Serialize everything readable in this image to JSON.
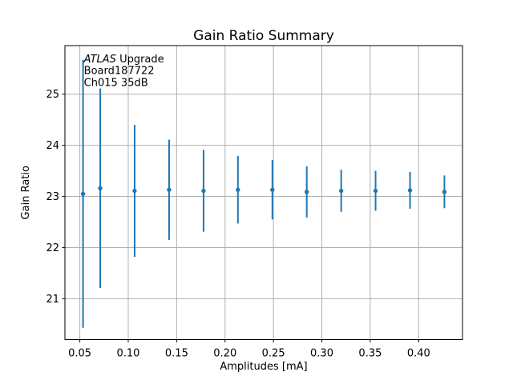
{
  "figure": {
    "background": "#ffffff",
    "spine_color": "#000000",
    "text_color": "#000000"
  },
  "chart_data": {
    "type": "scatter",
    "title": "Gain Ratio Summary",
    "xlabel": "Amplitudes [mA]",
    "ylabel": "Gain Ratio",
    "grid": true,
    "grid_color": "#b0b0b0",
    "legend": "none",
    "x": [
      0.0533,
      0.0711,
      0.1066,
      0.1422,
      0.1778,
      0.2133,
      0.2489,
      0.2844,
      0.32,
      0.3555,
      0.3911,
      0.4266
    ],
    "series": [
      {
        "name": "gain-ratio-errorbar-series",
        "marker": "point",
        "color": "#1f77b4",
        "y": [
          23.05,
          23.16,
          23.11,
          23.13,
          23.11,
          23.13,
          23.13,
          23.09,
          23.11,
          23.11,
          23.12,
          23.09
        ],
        "yerr": [
          2.62,
          1.95,
          1.29,
          0.98,
          0.8,
          0.66,
          0.58,
          0.5,
          0.41,
          0.39,
          0.36,
          0.32
        ]
      }
    ],
    "xlim": [
      0.0346,
      0.4453
    ],
    "ylim": [
      20.2,
      25.95
    ],
    "xticks": {
      "values": [
        0.05,
        0.1,
        0.15,
        0.2,
        0.25,
        0.3,
        0.35,
        0.4
      ],
      "labels": [
        "0.05",
        "0.10",
        "0.15",
        "0.20",
        "0.25",
        "0.30",
        "0.35",
        "0.40"
      ]
    },
    "yticks": {
      "values": [
        21,
        22,
        23,
        24,
        25
      ],
      "labels": [
        "21",
        "22",
        "23",
        "24",
        "25"
      ]
    },
    "annotation": {
      "x": 0.0542,
      "y": 25.625,
      "line1_italic": "ATLAS",
      "line1_rest": " Upgrade",
      "line2": "Board187722",
      "line3": "Ch015 35dB"
    }
  }
}
